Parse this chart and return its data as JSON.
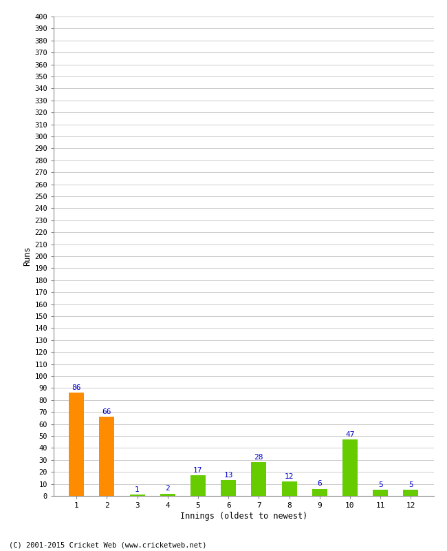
{
  "categories": [
    1,
    2,
    3,
    4,
    5,
    6,
    7,
    8,
    9,
    10,
    11,
    12
  ],
  "values": [
    86,
    66,
    1,
    2,
    17,
    13,
    28,
    12,
    6,
    47,
    5,
    5
  ],
  "bar_colors": [
    "#ff8c00",
    "#ff8c00",
    "#66cc00",
    "#66cc00",
    "#66cc00",
    "#66cc00",
    "#66cc00",
    "#66cc00",
    "#66cc00",
    "#66cc00",
    "#66cc00",
    "#66cc00"
  ],
  "xlabel": "Innings (oldest to newest)",
  "ylabel": "Runs",
  "ylim": [
    0,
    400
  ],
  "ytick_step": 10,
  "label_color": "#0000cc",
  "background_color": "#ffffff",
  "grid_color": "#cccccc",
  "footer": "(C) 2001-2015 Cricket Web (www.cricketweb.net)"
}
